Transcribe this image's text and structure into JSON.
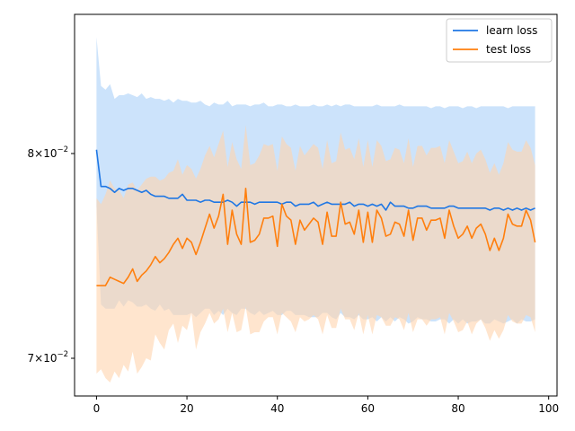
{
  "chart_data": {
    "type": "line",
    "y_scale": "log",
    "xlim": [
      -4.85,
      101.85
    ],
    "ylim": [
      0.0683,
      0.0876
    ],
    "x_ticks": [
      0,
      20,
      40,
      60,
      80,
      100
    ],
    "x_tick_labels": [
      "0",
      "20",
      "40",
      "60",
      "80",
      "100"
    ],
    "y_ticks": [
      0.07,
      0.08
    ],
    "y_tick_labels": [
      {
        "mantissa": "7",
        "base": "10",
        "exponent": "−2"
      },
      {
        "mantissa": "8",
        "base": "10",
        "exponent": "−2"
      }
    ],
    "legend": {
      "position": "upper right"
    },
    "grid": false,
    "x": [
      0,
      1,
      2,
      3,
      4,
      5,
      6,
      7,
      8,
      9,
      10,
      11,
      12,
      13,
      14,
      15,
      16,
      17,
      18,
      19,
      20,
      21,
      22,
      23,
      24,
      25,
      26,
      27,
      28,
      29,
      30,
      31,
      32,
      33,
      34,
      35,
      36,
      37,
      38,
      39,
      40,
      41,
      42,
      43,
      44,
      45,
      46,
      47,
      48,
      49,
      50,
      51,
      52,
      53,
      54,
      55,
      56,
      57,
      58,
      59,
      60,
      61,
      62,
      63,
      64,
      65,
      66,
      67,
      68,
      69,
      70,
      71,
      72,
      73,
      74,
      75,
      76,
      77,
      78,
      79,
      80,
      81,
      82,
      83,
      84,
      85,
      86,
      87,
      88,
      89,
      90,
      91,
      92,
      93,
      94,
      95,
      96,
      97
    ],
    "series": [
      {
        "name": "learn loss",
        "color": "#1f77e4",
        "band_color": "#99c8f7",
        "values": [
          0.0802,
          0.0783,
          0.0783,
          0.0782,
          0.078,
          0.0782,
          0.0781,
          0.0782,
          0.0782,
          0.0781,
          0.078,
          0.0781,
          0.0779,
          0.0778,
          0.0778,
          0.0778,
          0.0777,
          0.0777,
          0.0777,
          0.0779,
          0.0776,
          0.0776,
          0.0776,
          0.0775,
          0.0776,
          0.0776,
          0.0775,
          0.0775,
          0.0775,
          0.0776,
          0.0775,
          0.0773,
          0.0775,
          0.0775,
          0.0775,
          0.0774,
          0.0775,
          0.0775,
          0.0775,
          0.0775,
          0.0775,
          0.0774,
          0.0775,
          0.0775,
          0.0773,
          0.0774,
          0.0774,
          0.0774,
          0.0775,
          0.0773,
          0.0774,
          0.0775,
          0.0774,
          0.0774,
          0.0774,
          0.0774,
          0.0775,
          0.0773,
          0.0774,
          0.0774,
          0.0773,
          0.0774,
          0.0773,
          0.0774,
          0.0771,
          0.0775,
          0.0773,
          0.0773,
          0.0773,
          0.0772,
          0.0772,
          0.0773,
          0.0773,
          0.0773,
          0.0772,
          0.0772,
          0.0772,
          0.0772,
          0.0773,
          0.0773,
          0.0772,
          0.0772,
          0.0772,
          0.0772,
          0.0772,
          0.0772,
          0.0772,
          0.0771,
          0.0772,
          0.0772,
          0.0771,
          0.0772,
          0.0771,
          0.0772,
          0.0771,
          0.0772,
          0.0771,
          0.0772
        ],
        "lower": [
          0.0773,
          0.0725,
          0.0723,
          0.0723,
          0.0723,
          0.0727,
          0.0724,
          0.0727,
          0.0726,
          0.0724,
          0.0724,
          0.0725,
          0.0723,
          0.0722,
          0.0725,
          0.0722,
          0.0723,
          0.072,
          0.072,
          0.072,
          0.072,
          0.0721,
          0.0719,
          0.0721,
          0.0723,
          0.0723,
          0.072,
          0.0722,
          0.072,
          0.0723,
          0.0721,
          0.072,
          0.0723,
          0.0723,
          0.0721,
          0.072,
          0.0722,
          0.072,
          0.0721,
          0.0722,
          0.072,
          0.072,
          0.0722,
          0.0722,
          0.072,
          0.072,
          0.072,
          0.0719,
          0.0719,
          0.0719,
          0.0721,
          0.0721,
          0.0719,
          0.0718,
          0.0721,
          0.0719,
          0.0719,
          0.0718,
          0.072,
          0.0718,
          0.0718,
          0.0719,
          0.0717,
          0.0719,
          0.0717,
          0.0719,
          0.0717,
          0.0719,
          0.0718,
          0.0716,
          0.0717,
          0.0719,
          0.0718,
          0.0718,
          0.0717,
          0.0717,
          0.0718,
          0.0718,
          0.0716,
          0.0718,
          0.0716,
          0.0718,
          0.0716,
          0.0717,
          0.0717,
          0.0718,
          0.0716,
          0.0716,
          0.0718,
          0.0717,
          0.0716,
          0.0717,
          0.0718,
          0.0716,
          0.0718,
          0.0717,
          0.0717,
          0.0718
        ],
        "upper": [
          0.0863,
          0.0836,
          0.0834,
          0.0837,
          0.0829,
          0.0831,
          0.0831,
          0.0832,
          0.0831,
          0.083,
          0.0832,
          0.0829,
          0.083,
          0.0829,
          0.0829,
          0.0828,
          0.0829,
          0.0827,
          0.0829,
          0.0828,
          0.0828,
          0.0827,
          0.0827,
          0.0828,
          0.0826,
          0.0825,
          0.0827,
          0.0826,
          0.0826,
          0.0828,
          0.0825,
          0.0826,
          0.0826,
          0.0826,
          0.0825,
          0.0826,
          0.0826,
          0.0827,
          0.0825,
          0.0825,
          0.0826,
          0.0826,
          0.0825,
          0.0825,
          0.0826,
          0.0825,
          0.0825,
          0.0825,
          0.0826,
          0.0825,
          0.0825,
          0.0826,
          0.0825,
          0.0826,
          0.0825,
          0.0826,
          0.0826,
          0.0825,
          0.0825,
          0.0825,
          0.0825,
          0.0825,
          0.0826,
          0.0825,
          0.0825,
          0.0825,
          0.0825,
          0.0826,
          0.0825,
          0.0825,
          0.0825,
          0.0825,
          0.0825,
          0.0825,
          0.0824,
          0.0825,
          0.0825,
          0.0824,
          0.0825,
          0.0825,
          0.0825,
          0.0824,
          0.0825,
          0.0825,
          0.0824,
          0.0825,
          0.0825,
          0.0825,
          0.0825,
          0.0825,
          0.0825,
          0.0824,
          0.0825,
          0.0825,
          0.0825,
          0.0825,
          0.0825,
          0.0825
        ]
      },
      {
        "name": "test loss",
        "color": "#ff7f0e",
        "band_color": "#ffd3ad",
        "values": [
          0.0734,
          0.0734,
          0.0734,
          0.0738,
          0.0737,
          0.0736,
          0.0735,
          0.0738,
          0.0742,
          0.0736,
          0.0739,
          0.0741,
          0.0744,
          0.0748,
          0.0745,
          0.0747,
          0.075,
          0.0754,
          0.0757,
          0.0752,
          0.0757,
          0.0755,
          0.0749,
          0.0755,
          0.0762,
          0.0769,
          0.0762,
          0.0768,
          0.0779,
          0.0754,
          0.0771,
          0.0759,
          0.0754,
          0.0782,
          0.0755,
          0.0756,
          0.0759,
          0.0767,
          0.0767,
          0.0768,
          0.0753,
          0.0774,
          0.0768,
          0.0766,
          0.0754,
          0.0766,
          0.0761,
          0.0764,
          0.0767,
          0.0765,
          0.0754,
          0.077,
          0.0758,
          0.0758,
          0.0775,
          0.0764,
          0.0765,
          0.0759,
          0.0771,
          0.0755,
          0.077,
          0.0755,
          0.0771,
          0.0767,
          0.0758,
          0.0759,
          0.0765,
          0.0764,
          0.0758,
          0.0771,
          0.0756,
          0.0767,
          0.0767,
          0.0761,
          0.0766,
          0.0766,
          0.0767,
          0.0757,
          0.0771,
          0.0763,
          0.0757,
          0.0759,
          0.0763,
          0.0757,
          0.0762,
          0.0764,
          0.0759,
          0.0751,
          0.0757,
          0.0751,
          0.0757,
          0.0769,
          0.0764,
          0.0763,
          0.0763,
          0.0771,
          0.0766,
          0.0755
        ],
        "lower": [
          0.0693,
          0.0695,
          0.0691,
          0.0689,
          0.0694,
          0.0691,
          0.0697,
          0.0694,
          0.0703,
          0.0693,
          0.0696,
          0.07,
          0.0699,
          0.0711,
          0.0707,
          0.0704,
          0.0713,
          0.0716,
          0.0707,
          0.0715,
          0.0713,
          0.0721,
          0.0704,
          0.0712,
          0.0716,
          0.0721,
          0.0716,
          0.0718,
          0.0723,
          0.0712,
          0.0721,
          0.0712,
          0.0713,
          0.0724,
          0.0711,
          0.0712,
          0.0712,
          0.0717,
          0.0719,
          0.0719,
          0.0711,
          0.0721,
          0.0719,
          0.0717,
          0.0712,
          0.0719,
          0.0717,
          0.0718,
          0.072,
          0.0718,
          0.0711,
          0.072,
          0.0714,
          0.0714,
          0.0723,
          0.0718,
          0.0718,
          0.0713,
          0.0721,
          0.0711,
          0.072,
          0.0711,
          0.072,
          0.0719,
          0.0715,
          0.0715,
          0.0719,
          0.0718,
          0.0713,
          0.0721,
          0.0712,
          0.0718,
          0.0718,
          0.0715,
          0.0718,
          0.0718,
          0.0719,
          0.0711,
          0.0721,
          0.0717,
          0.0712,
          0.0713,
          0.0717,
          0.0711,
          0.0716,
          0.0718,
          0.0714,
          0.0708,
          0.0713,
          0.0709,
          0.0713,
          0.072,
          0.0717,
          0.0716,
          0.0716,
          0.072,
          0.0719,
          0.0712
        ],
        "upper": [
          0.0777,
          0.0774,
          0.0779,
          0.0786,
          0.0782,
          0.0781,
          0.0777,
          0.0784,
          0.0785,
          0.0781,
          0.0784,
          0.0787,
          0.0788,
          0.0788,
          0.0786,
          0.0787,
          0.079,
          0.0791,
          0.0797,
          0.0789,
          0.0794,
          0.0792,
          0.0787,
          0.0792,
          0.0799,
          0.0804,
          0.0798,
          0.0805,
          0.0812,
          0.0793,
          0.0806,
          0.0797,
          0.0792,
          0.0815,
          0.0794,
          0.0795,
          0.0799,
          0.0805,
          0.0804,
          0.0805,
          0.0791,
          0.0809,
          0.0805,
          0.0803,
          0.0791,
          0.0804,
          0.0799,
          0.0802,
          0.0805,
          0.0803,
          0.0792,
          0.0807,
          0.0795,
          0.0796,
          0.0811,
          0.0802,
          0.0803,
          0.0797,
          0.0808,
          0.0793,
          0.0807,
          0.0793,
          0.0807,
          0.0804,
          0.0796,
          0.0797,
          0.0803,
          0.0802,
          0.0795,
          0.0808,
          0.0793,
          0.0804,
          0.0804,
          0.0799,
          0.0803,
          0.0803,
          0.0804,
          0.0795,
          0.0807,
          0.0801,
          0.0795,
          0.0796,
          0.0801,
          0.0795,
          0.08,
          0.0802,
          0.0797,
          0.079,
          0.0795,
          0.0789,
          0.0795,
          0.0806,
          0.0802,
          0.0801,
          0.0801,
          0.0807,
          0.0803,
          0.0794
        ]
      }
    ]
  }
}
